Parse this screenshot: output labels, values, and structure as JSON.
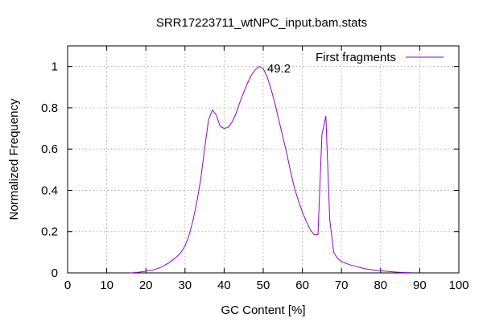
{
  "chart_data": {
    "type": "line",
    "title": "SRR17223711_wtNPC_input.bam.stats",
    "xlabel": "GC Content [%]",
    "ylabel": "Normalized Frequency",
    "xlim": [
      0,
      100
    ],
    "ylim": [
      0,
      1.1
    ],
    "x_ticks": [
      0,
      10,
      20,
      30,
      40,
      50,
      60,
      70,
      80,
      90,
      100
    ],
    "y_ticks": [
      0,
      0.2,
      0.4,
      0.6,
      0.8,
      1
    ],
    "y_tick_labels": [
      "0",
      "0.2",
      "0.4",
      "0.6",
      "0.8",
      "1"
    ],
    "grid": true,
    "legend_position": "top-right",
    "series": [
      {
        "name": "First fragments",
        "color": "#9400d3",
        "x": [
          16,
          18,
          20,
          22,
          24,
          26,
          27,
          28,
          29,
          30,
          31,
          32,
          33,
          34,
          35,
          36,
          37,
          38,
          39,
          40,
          41,
          42,
          43,
          44,
          45,
          46,
          47,
          48,
          49,
          50,
          51,
          52,
          53,
          54,
          55,
          56,
          57,
          58,
          59,
          60,
          61,
          62,
          63,
          64,
          65,
          66,
          67,
          68,
          69,
          70,
          72,
          74,
          76,
          78,
          80,
          82,
          84,
          86,
          88
        ],
        "y": [
          0,
          0.003,
          0.008,
          0.015,
          0.028,
          0.05,
          0.065,
          0.08,
          0.1,
          0.13,
          0.18,
          0.25,
          0.34,
          0.45,
          0.6,
          0.74,
          0.79,
          0.765,
          0.71,
          0.7,
          0.705,
          0.73,
          0.77,
          0.825,
          0.875,
          0.92,
          0.96,
          0.985,
          1.0,
          0.99,
          0.95,
          0.89,
          0.82,
          0.74,
          0.66,
          0.58,
          0.49,
          0.41,
          0.35,
          0.295,
          0.25,
          0.21,
          0.185,
          0.185,
          0.67,
          0.76,
          0.26,
          0.1,
          0.07,
          0.055,
          0.04,
          0.03,
          0.02,
          0.015,
          0.01,
          0.007,
          0.004,
          0.002,
          0.001
        ]
      }
    ],
    "annotations": [
      {
        "text": "49.2",
        "x": 51,
        "y": 0.99
      }
    ]
  }
}
